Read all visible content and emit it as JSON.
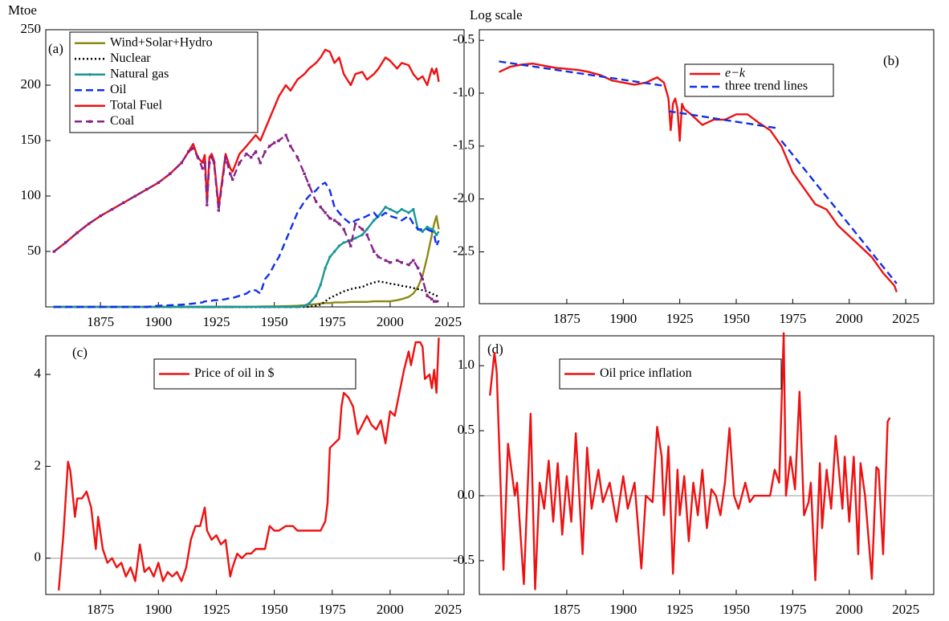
{
  "chart_data": [
    {
      "type": "line",
      "label": "(a)",
      "y_label": "Mtoe",
      "legend": "upper left",
      "xlim": [
        1851.4,
        2031.9
      ],
      "ylim": [
        0,
        250
      ],
      "xticks": [
        1875,
        1900,
        1925,
        1950,
        1975,
        2000,
        2025
      ],
      "yticks": [
        50,
        100,
        150,
        200,
        250
      ],
      "x": [
        1855,
        1860,
        1865,
        1870,
        1875,
        1880,
        1885,
        1890,
        1895,
        1900,
        1905,
        1910,
        1913,
        1915,
        1917,
        1919,
        1920,
        1921,
        1922,
        1923,
        1924,
        1926,
        1929,
        1931,
        1932,
        1935,
        1938,
        1940,
        1942,
        1944,
        1946,
        1948,
        1950,
        1952,
        1955,
        1957,
        1960,
        1963,
        1965,
        1968,
        1970,
        1972,
        1974,
        1976,
        1978,
        1980,
        1983,
        1985,
        1988,
        1990,
        1993,
        1995,
        1998,
        2000,
        2003,
        2005,
        2008,
        2010,
        2012,
        2014,
        2016,
        2018,
        2019,
        2020,
        2021
      ],
      "series": [
        {
          "name": "Wind+Solar+Hydro",
          "color": "#8c8a12",
          "dash": "solid",
          "values": [
            0,
            0,
            0,
            0,
            0,
            0,
            0,
            0,
            0,
            0,
            0,
            0,
            0,
            0,
            0,
            0,
            0,
            0,
            0,
            0,
            0,
            0,
            0,
            0,
            0,
            0,
            0,
            0.2,
            0.2,
            0.3,
            0.4,
            0.4,
            0.5,
            0.5,
            0.7,
            0.8,
            1,
            1.5,
            2,
            2.5,
            3,
            3.5,
            3.5,
            4,
            4,
            4,
            4.5,
            4.5,
            4.5,
            4.5,
            5,
            5,
            5,
            5,
            6,
            7,
            9,
            12,
            18,
            28,
            45,
            65,
            75,
            82,
            70
          ]
        },
        {
          "name": "Nuclear",
          "color": "#000000",
          "dash": "dotted",
          "values": [
            0,
            0,
            0,
            0,
            0,
            0,
            0,
            0,
            0,
            0,
            0,
            0,
            0,
            0,
            0,
            0,
            0,
            0,
            0,
            0,
            0,
            0,
            0,
            0,
            0,
            0,
            0,
            0,
            0,
            0,
            0,
            0,
            0,
            0,
            0,
            0,
            0,
            0,
            0,
            1,
            2,
            5,
            8,
            10,
            12,
            14,
            16,
            17,
            18,
            20,
            22,
            23,
            22,
            21,
            20,
            19,
            18,
            17,
            16,
            15,
            14,
            12,
            11,
            10,
            10
          ]
        },
        {
          "name": "Natural gas",
          "color": "#1a9696",
          "dash": "solid",
          "marker": "circle",
          "values": [
            0,
            0,
            0,
            0,
            0,
            0,
            0,
            0,
            0,
            0,
            0,
            0,
            0,
            0,
            0,
            0,
            0,
            0,
            0,
            0,
            0,
            0,
            0,
            0,
            0,
            0,
            0,
            0,
            0,
            0,
            0,
            0,
            0,
            0,
            0,
            0,
            0,
            1,
            3,
            10,
            20,
            35,
            45,
            50,
            55,
            58,
            60,
            62,
            65,
            70,
            78,
            82,
            90,
            88,
            85,
            88,
            85,
            88,
            70,
            68,
            72,
            70,
            68,
            65,
            68
          ]
        },
        {
          "name": "Oil",
          "color": "#1030e8",
          "dash": "dashed",
          "values": [
            0,
            0,
            0,
            0,
            0,
            0,
            0,
            0,
            0,
            1,
            1.5,
            2,
            2.5,
            3,
            3.5,
            4,
            5,
            5,
            5,
            5.5,
            6,
            6,
            7,
            8,
            8,
            10,
            12,
            15,
            15,
            12,
            25,
            30,
            38,
            45,
            60,
            70,
            85,
            95,
            100,
            105,
            110,
            112,
            105,
            90,
            85,
            80,
            75,
            78,
            80,
            82,
            85,
            80,
            85,
            82,
            80,
            78,
            82,
            75,
            70,
            70,
            70,
            68,
            65,
            55,
            60
          ]
        },
        {
          "name": "Total Fuel",
          "color": "#ee1111",
          "dash": "solid",
          "values": [
            50,
            58,
            67,
            75,
            82,
            88,
            94,
            100,
            106,
            112,
            120,
            130,
            140,
            147,
            135,
            130,
            137,
            95,
            135,
            138,
            132,
            90,
            138,
            125,
            122,
            138,
            145,
            150,
            155,
            150,
            160,
            170,
            180,
            190,
            200,
            195,
            205,
            210,
            215,
            220,
            225,
            232,
            230,
            220,
            225,
            210,
            200,
            210,
            212,
            205,
            210,
            215,
            225,
            222,
            215,
            220,
            218,
            210,
            205,
            208,
            200,
            215,
            210,
            215,
            203
          ]
        },
        {
          "name": "Coal",
          "color": "#882288",
          "dash": "dashed",
          "marker": "square",
          "values": [
            50,
            58,
            67,
            75,
            82,
            88,
            94,
            100,
            106,
            112,
            120,
            130,
            140,
            143,
            135,
            125,
            130,
            92,
            130,
            135,
            130,
            87,
            135,
            120,
            115,
            130,
            138,
            135,
            140,
            130,
            140,
            145,
            148,
            150,
            155,
            145,
            135,
            120,
            110,
            95,
            90,
            85,
            80,
            78,
            75,
            70,
            55,
            75,
            70,
            65,
            50,
            45,
            42,
            40,
            42,
            40,
            38,
            42,
            35,
            25,
            10,
            7,
            5,
            5,
            5
          ]
        }
      ]
    },
    {
      "type": "line",
      "label": "(b)",
      "y_label": "Log scale",
      "legend": "upper right",
      "xlim": [
        1836.3,
        2037.4
      ],
      "ylim": [
        -2.99,
        -0.4
      ],
      "xticks": [
        1875,
        1900,
        1925,
        1950,
        1975,
        2000,
        2025
      ],
      "yticks": [
        -0.5,
        {
          "value": -1,
          "label": "-1.0"
        },
        -1.5,
        {
          "value": -2,
          "label": "-2.0"
        },
        -2.5
      ],
      "series": [
        {
          "name": "e−k",
          "color": "#ee1111",
          "dash": "solid",
          "italic": true,
          "x": [
            1845,
            1850,
            1855,
            1860,
            1865,
            1870,
            1875,
            1880,
            1885,
            1890,
            1895,
            1900,
            1905,
            1910,
            1915,
            1918,
            1920,
            1921,
            1922,
            1923,
            1924,
            1925,
            1926,
            1927,
            1930,
            1935,
            1940,
            1945,
            1950,
            1955,
            1960,
            1965,
            1970,
            1975,
            1980,
            1985,
            1990,
            1995,
            2000,
            2005,
            2010,
            2015,
            2020,
            2021
          ],
          "values": [
            -0.8,
            -0.75,
            -0.73,
            -0.72,
            -0.74,
            -0.76,
            -0.77,
            -0.78,
            -0.8,
            -0.83,
            -0.88,
            -0.9,
            -0.92,
            -0.9,
            -0.85,
            -0.9,
            -1.05,
            -1.35,
            -1.1,
            -1.05,
            -1.15,
            -1.45,
            -1.1,
            -1.15,
            -1.2,
            -1.3,
            -1.25,
            -1.25,
            -1.2,
            -1.2,
            -1.28,
            -1.35,
            -1.5,
            -1.75,
            -1.9,
            -2.05,
            -2.1,
            -2.25,
            -2.35,
            -2.45,
            -2.55,
            -2.7,
            -2.82,
            -2.88
          ]
        },
        {
          "name": "three trend lines",
          "color": "#1030e8",
          "dash": "dashed",
          "x": [
            1845,
            1918,
            1919,
            1920,
            1968,
            1969,
            1970,
            2021
          ],
          "values": [
            -0.7,
            -0.93,
            null,
            -1.17,
            -1.33,
            null,
            -1.45,
            -2.8
          ]
        }
      ]
    },
    {
      "type": "line",
      "label": "(c)",
      "legend": "upper center",
      "xlim": [
        1851.4,
        2031.9
      ],
      "ylim": [
        -0.79,
        4.84
      ],
      "xticks": [
        1875,
        1900,
        1925,
        1950,
        1975,
        2000,
        2025
      ],
      "yticks": [
        0,
        2,
        4
      ],
      "hline": 0,
      "x": [
        1857,
        1859,
        1861,
        1862,
        1864,
        1865,
        1867,
        1869,
        1871,
        1873,
        1874,
        1876,
        1878,
        1880,
        1882,
        1884,
        1886,
        1888,
        1890,
        1892,
        1894,
        1896,
        1898,
        1900,
        1902,
        1904,
        1906,
        1908,
        1910,
        1912,
        1914,
        1916,
        1918,
        1920,
        1921,
        1923,
        1925,
        1927,
        1929,
        1931,
        1932,
        1934,
        1936,
        1938,
        1940,
        1942,
        1944,
        1946,
        1948,
        1950,
        1952,
        1955,
        1958,
        1960,
        1965,
        1970,
        1972,
        1973,
        1974,
        1976,
        1978,
        1979,
        1980,
        1982,
        1984,
        1986,
        1988,
        1990,
        1992,
        1994,
        1996,
        1998,
        2000,
        2002,
        2004,
        2006,
        2008,
        2009,
        2011,
        2013,
        2014,
        2015,
        2017,
        2018,
        2019,
        2020,
        2021
      ],
      "series": [
        {
          "name": "Price of oil in $",
          "color": "#ee1111",
          "dash": "solid",
          "values": [
            -0.7,
            0.5,
            2.1,
            1.9,
            0.9,
            1.3,
            1.3,
            1.45,
            1.1,
            0.2,
            0.9,
            0.2,
            -0.1,
            0.0,
            -0.2,
            -0.1,
            -0.4,
            -0.2,
            -0.5,
            0.3,
            -0.3,
            -0.2,
            -0.4,
            -0.1,
            -0.5,
            -0.3,
            -0.4,
            -0.3,
            -0.5,
            -0.2,
            0.4,
            0.7,
            0.7,
            1.1,
            0.6,
            0.4,
            0.5,
            0.3,
            0.4,
            -0.4,
            -0.2,
            0.1,
            0.0,
            0.1,
            0.1,
            0.2,
            0.2,
            0.2,
            0.7,
            0.6,
            0.6,
            0.7,
            0.7,
            0.6,
            0.6,
            0.6,
            0.8,
            1.2,
            2.4,
            2.5,
            2.6,
            3.3,
            3.6,
            3.5,
            3.3,
            2.7,
            2.9,
            3.1,
            2.9,
            2.8,
            3.0,
            2.5,
            3.2,
            3.1,
            3.6,
            4.1,
            4.5,
            4.2,
            4.7,
            4.7,
            4.6,
            3.9,
            4.0,
            3.7,
            4.1,
            3.6,
            4.8
          ]
        }
      ]
    },
    {
      "type": "line",
      "label": "(d)",
      "legend": "upper left",
      "xlim": [
        1836.3,
        2037.4
      ],
      "ylim": [
        -0.76,
        1.23
      ],
      "xticks": [
        1875,
        1900,
        1925,
        1950,
        1975,
        2000,
        2025
      ],
      "yticks": [
        -0.5,
        {
          "value": 0,
          "label": "0.0"
        },
        0.5,
        {
          "value": 1,
          "label": "1.0"
        }
      ],
      "hline": 0,
      "x": [
        1841,
        1843,
        1844,
        1847,
        1849,
        1852,
        1853,
        1856,
        1859,
        1861,
        1863,
        1865,
        1867,
        1869,
        1871,
        1873,
        1875,
        1877,
        1879,
        1882,
        1884,
        1886,
        1889,
        1891,
        1894,
        1897,
        1900,
        1902,
        1905,
        1908,
        1910,
        1913,
        1915,
        1917,
        1918,
        1920,
        1922,
        1924,
        1925,
        1927,
        1929,
        1931,
        1933,
        1935,
        1937,
        1939,
        1941,
        1943,
        1945,
        1947,
        1949,
        1951,
        1954,
        1956,
        1958,
        1962,
        1965,
        1967,
        1969,
        1971,
        1972,
        1974,
        1976,
        1978,
        1980,
        1982,
        1983,
        1985,
        1987,
        1988,
        1990,
        1992,
        1994,
        1997,
        1998,
        2000,
        2002,
        2004,
        2005,
        2007,
        2010,
        2012,
        2013,
        2015,
        2017,
        2018
      ],
      "series": [
        {
          "name": "Oil price inflation",
          "color": "#ee1111",
          "dash": "solid",
          "values": [
            0.77,
            1.1,
            0.95,
            -0.57,
            0.4,
            0.0,
            0.1,
            -0.68,
            0.63,
            -0.72,
            0.1,
            -0.1,
            0.27,
            -0.2,
            0.25,
            -0.3,
            0.15,
            -0.2,
            0.48,
            -0.45,
            0.37,
            -0.1,
            0.2,
            -0.05,
            0.1,
            -0.2,
            0.15,
            -0.1,
            0.1,
            -0.56,
            0.0,
            -0.05,
            0.53,
            0.3,
            -0.15,
            0.38,
            -0.6,
            0.2,
            -0.15,
            0.15,
            -0.35,
            0.1,
            -0.15,
            0.2,
            -0.25,
            0.05,
            0.0,
            -0.15,
            0.1,
            0.52,
            0.0,
            -0.1,
            0.1,
            -0.05,
            0.0,
            0.0,
            0.0,
            0.2,
            0.1,
            1.25,
            0.0,
            0.3,
            0.05,
            0.8,
            -0.15,
            -0.05,
            0.1,
            -0.65,
            0.25,
            -0.25,
            0.2,
            -0.1,
            0.46,
            -0.1,
            0.3,
            -0.2,
            0.3,
            -0.45,
            0.25,
            0.0,
            -0.64,
            0.22,
            0.2,
            -0.45,
            0.57,
            0.6
          ]
        }
      ]
    }
  ]
}
